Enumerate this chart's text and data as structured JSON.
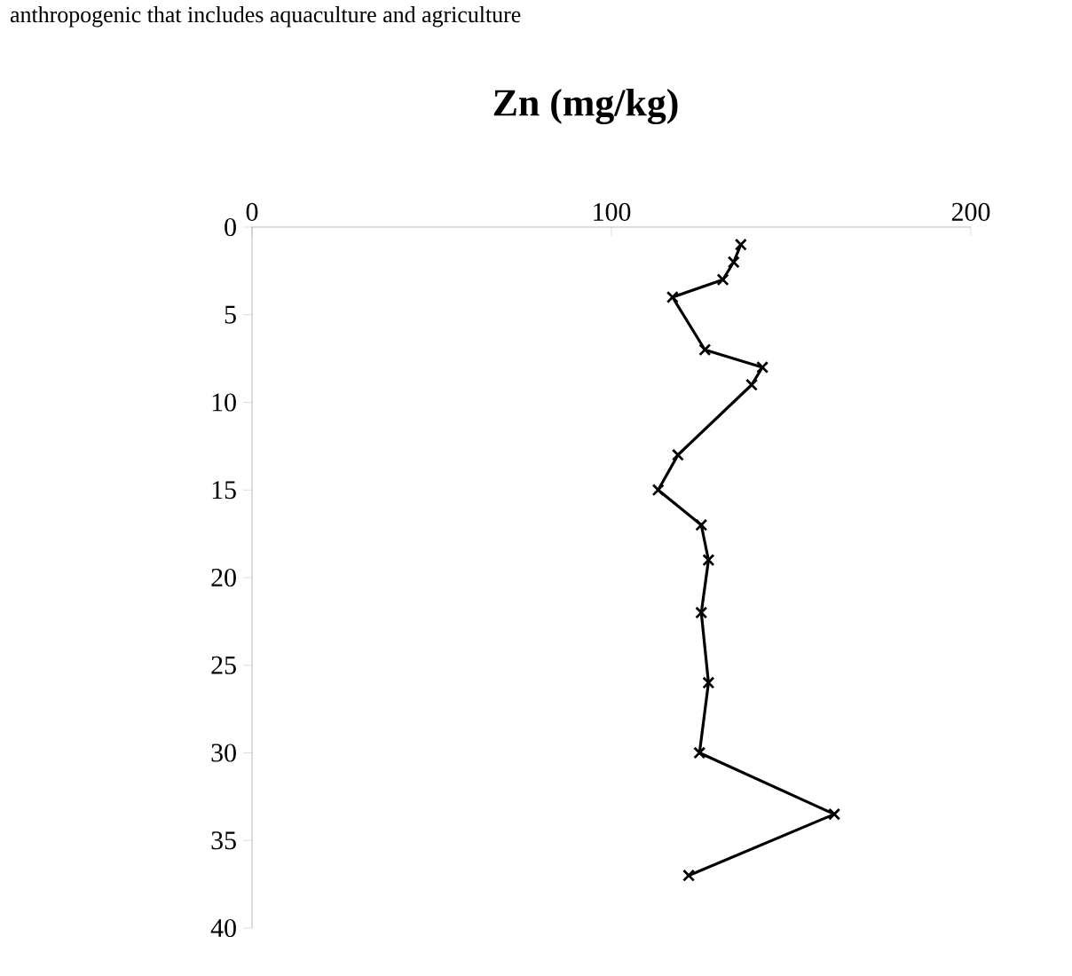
{
  "chart_data": {
    "type": "line",
    "title": "Zn (mg/kg)",
    "annotations": [
      "anthropogenic that includes aquaculture and agriculture"
    ],
    "x": [
      136,
      134,
      131,
      117,
      126,
      142,
      139,
      118.5,
      113,
      125,
      127,
      125,
      127,
      124.5,
      162,
      121.5
    ],
    "values": [
      1,
      2,
      3,
      4,
      7,
      8,
      9,
      13,
      15,
      17,
      19,
      22,
      26,
      30,
      33.5,
      37
    ],
    "color": "#000000",
    "marker": "cross",
    "line_style": "solid",
    "xlim": [
      0,
      200
    ],
    "xticks": [
      0,
      100,
      200
    ],
    "ylim": [
      40,
      0
    ],
    "yticks": [
      0,
      5,
      10,
      15,
      20,
      25,
      30,
      35,
      40
    ],
    "grid": false
  }
}
